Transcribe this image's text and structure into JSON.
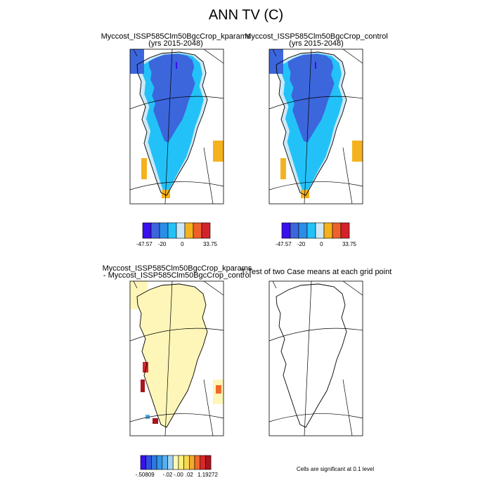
{
  "title": "ANN TV (C)",
  "panels": [
    {
      "title": "Myccost_ISSP585Clm50BgcCrop_kparams",
      "subtitle": "(yrs 2015-2048)",
      "colorbar": {
        "colors": [
          "#3a10ee",
          "#3c66dc",
          "#2a8ee8",
          "#22c2f8",
          "#cde8f6",
          "#f5b21e",
          "#f0602a",
          "#d4222a"
        ],
        "labels": [
          "-47.57",
          "-20",
          "0",
          "33.75"
        ]
      }
    },
    {
      "title": "Myccost_ISSP585Clm50BgcCrop_control",
      "subtitle": "(yrs 2015-2048)",
      "colorbar": {
        "colors": [
          "#3a10ee",
          "#3c66dc",
          "#2a8ee8",
          "#22c2f8",
          "#cde8f6",
          "#f5b21e",
          "#f0602a",
          "#d4222a"
        ],
        "labels": [
          "-47.57",
          "-20",
          "0",
          "33.75"
        ]
      }
    },
    {
      "title": "Myccost_ISSP585Clm50BgcCrop_kparams",
      "subtitle": "- Myccost_ISSP585Clm50BgcCrop_control",
      "colorbar": {
        "colors": [
          "#3a10ee",
          "#3050e0",
          "#2f78e4",
          "#3296ea",
          "#56b0ee",
          "#9fd2f4",
          "#fdf6b8",
          "#faf07a",
          "#f8d850",
          "#f5a830",
          "#f06a2a",
          "#d8262a",
          "#a8141e"
        ],
        "labels": [
          "-.50809",
          "-.02",
          "-.00",
          ".02",
          "1.19272"
        ]
      }
    },
    {
      "title": "T-Test of two Case means at each grid point",
      "note": "Cells are significant at 0.1 level"
    }
  ]
}
